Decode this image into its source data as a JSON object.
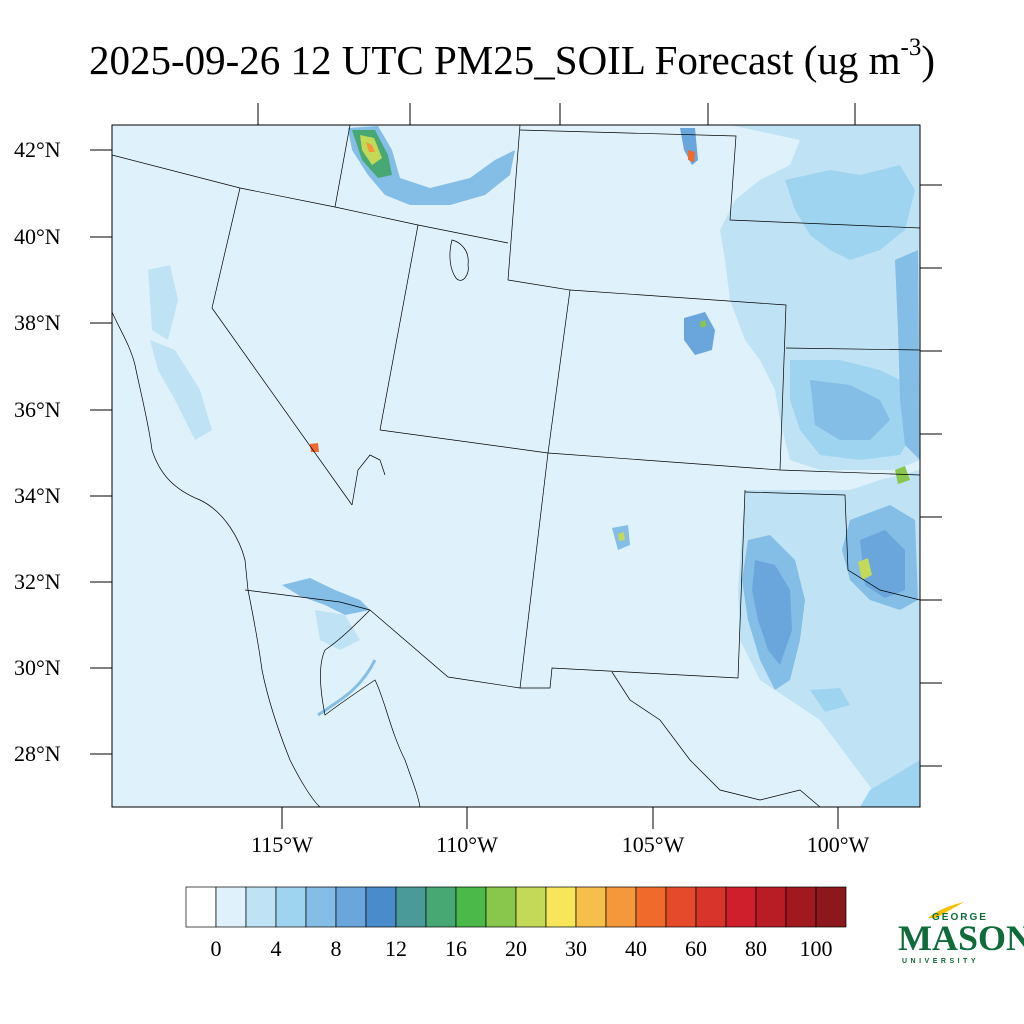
{
  "title": {
    "main": "2025-09-26 12 UTC PM25_SOIL Forecast (ug m",
    "exponent": "-3",
    "close": ")"
  },
  "map": {
    "lat_labels": [
      "42°N",
      "40°N",
      "38°N",
      "36°N",
      "34°N",
      "32°N",
      "30°N",
      "28°N"
    ],
    "lon_labels": [
      "115°W",
      "110°W",
      "105°W",
      "100°W"
    ],
    "background_color": "#dff1fa"
  },
  "colorbar": {
    "labels": [
      "0",
      "4",
      "8",
      "12",
      "16",
      "20",
      "30",
      "40",
      "60",
      "80",
      "100"
    ],
    "colors": [
      "#ffffff",
      "#dff1fa",
      "#bfe3f5",
      "#9fd4f0",
      "#84bde6",
      "#6aa5dc",
      "#4a8bcb",
      "#4a9a9a",
      "#48a874",
      "#4bb84a",
      "#88c64c",
      "#c3d957",
      "#f7e65a",
      "#f6be4b",
      "#f5983b",
      "#f06a2b",
      "#e54a2a",
      "#d9342c",
      "#d01f2c",
      "#b81c25",
      "#a0191f",
      "#8c171c"
    ]
  },
  "logo": {
    "line1": "GEORGE",
    "line2": "MASON",
    "line3": "UNIVERSITY",
    "color": "#0f6b3a"
  }
}
